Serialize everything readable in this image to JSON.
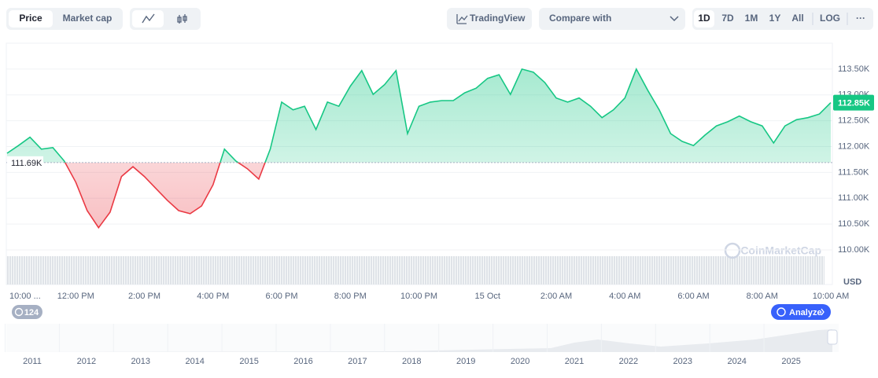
{
  "toolbar": {
    "tabs": [
      "Price",
      "Market cap"
    ],
    "trading_view": "TradingView",
    "compare": "Compare with",
    "ranges": [
      "1D",
      "7D",
      "1M",
      "1Y",
      "All"
    ],
    "log": "LOG",
    "more": "···"
  },
  "chart_data": {
    "type": "line",
    "categories": [
      "10:00 ...",
      null,
      null,
      null,
      null,
      null,
      "12:00 PM",
      null,
      null,
      null,
      null,
      null,
      "2:00 PM",
      null,
      null,
      null,
      null,
      null,
      "4:00 PM",
      null,
      null,
      null,
      null,
      null,
      "6:00 PM",
      null,
      null,
      null,
      null,
      null,
      "8:00 PM",
      null,
      null,
      null,
      null,
      null,
      "10:00 PM",
      null,
      null,
      null,
      null,
      null,
      "15 Oct",
      null,
      null,
      null,
      null,
      null,
      "2:00 AM",
      null,
      null,
      null,
      null,
      null,
      "4:00 AM",
      null,
      null,
      null,
      null,
      null,
      "6:00 AM",
      null,
      null,
      null,
      null,
      null,
      "8:00 AM",
      null,
      null,
      null,
      null,
      null,
      "10:00 AM"
    ],
    "values": [
      111870,
      112020,
      112180,
      111950,
      111980,
      111720,
      111310,
      110760,
      110430,
      110730,
      111420,
      111610,
      111420,
      111190,
      110960,
      110760,
      110700,
      110850,
      111260,
      111950,
      111720,
      111570,
      111370,
      111950,
      112860,
      112710,
      112780,
      112330,
      112860,
      112780,
      113170,
      113470,
      113010,
      113200,
      113470,
      112250,
      112780,
      112860,
      112890,
      112890,
      113040,
      113130,
      113320,
      113390,
      113010,
      113500,
      113440,
      113240,
      112940,
      112860,
      112940,
      112780,
      112560,
      112710,
      112940,
      113500,
      113090,
      112710,
      112250,
      112100,
      112020,
      112220,
      112400,
      112480,
      112590,
      112480,
      112400,
      112070,
      112400,
      112520,
      112560,
      112630,
      112850
    ],
    "colors": {
      "up": "#16c784",
      "down": "#ea3943"
    },
    "baseline": 111690,
    "baseline_label": "111.69K",
    "last_label": "112.85K",
    "ylim": [
      109330,
      114000
    ],
    "yticks": [
      {
        "value": 110000,
        "label": "110.00K"
      },
      {
        "value": 110500,
        "label": "110.50K"
      },
      {
        "value": 111000,
        "label": "111.00K"
      },
      {
        "value": 111500,
        "label": "111.50K"
      },
      {
        "value": 112000,
        "label": "112.00K"
      },
      {
        "value": 112500,
        "label": "112.50K"
      },
      {
        "value": 113000,
        "label": "113.00K"
      },
      {
        "value": 113500,
        "label": "113.50K"
      }
    ],
    "grid": true,
    "currency": "USD",
    "watermark": "CoinMarketCap"
  },
  "navigator": {
    "years": [
      "2011",
      "2012",
      "2013",
      "2014",
      "2015",
      "2016",
      "2017",
      "2018",
      "2019",
      "2020",
      "2021",
      "2022",
      "2023",
      "2024",
      "2025"
    ]
  },
  "badge": "124",
  "analyze": "Analyze"
}
